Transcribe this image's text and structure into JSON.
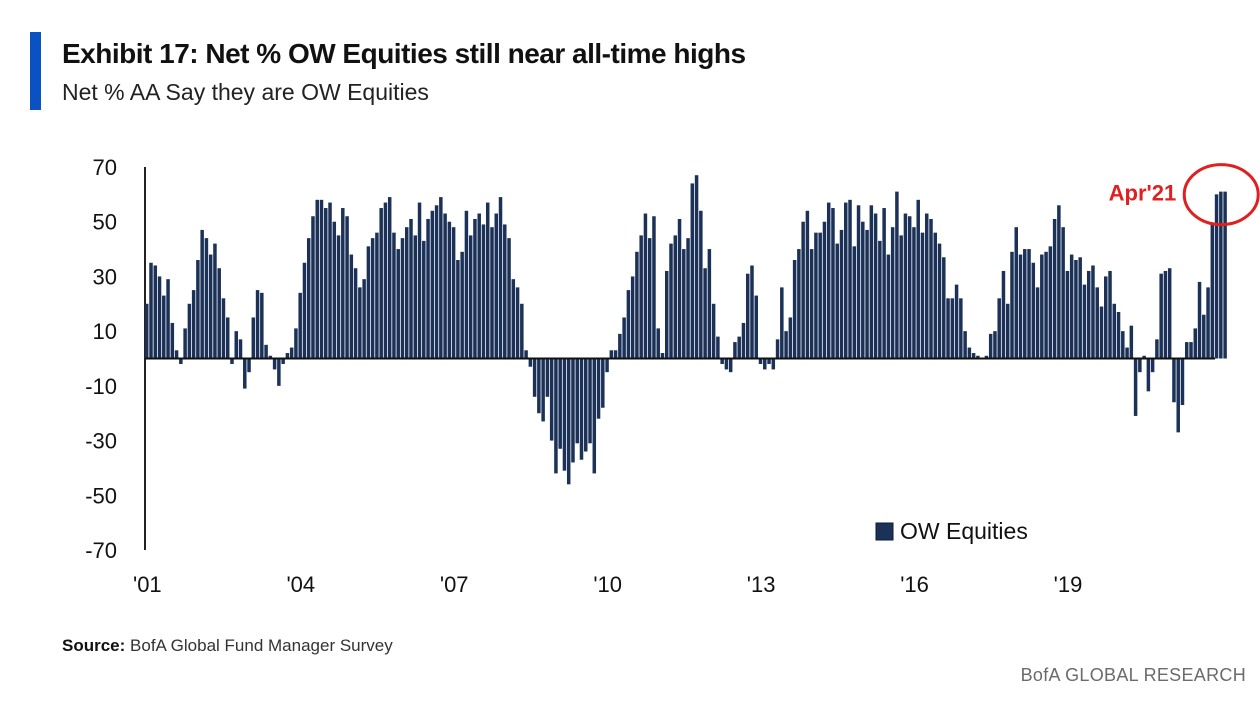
{
  "header": {
    "title": "Exhibit 17: Net % OW Equities still near all-time highs",
    "subtitle": "Net % AA Say they are OW Equities"
  },
  "footer": {
    "source_label": "Source:",
    "source_text": "BofA Global Fund Manager Survey",
    "brand": "BofA GLOBAL RESEARCH"
  },
  "colors": {
    "bar": "#1b3157",
    "accent": "#0a52c4",
    "annotation": "#e02020"
  },
  "annotation": {
    "label": "Apr'21"
  },
  "chart_data": {
    "type": "bar",
    "ylim": [
      -70,
      70
    ],
    "yticks": [
      70,
      50,
      30,
      10,
      -10,
      -30,
      -50,
      -70
    ],
    "xticks": [
      "'01",
      "'04",
      "'07",
      "'10",
      "'13",
      "'16",
      "'19"
    ],
    "xrange": [
      2001,
      2021.92
    ],
    "legend": {
      "label": "OW Equities",
      "position": "bottom-right"
    },
    "grid": false,
    "series": [
      {
        "name": "OW Equities",
        "start": "2001-01",
        "frequency": "monthly",
        "values": [
          20,
          35,
          34,
          30,
          23,
          29,
          13,
          3,
          -2,
          11,
          20,
          25,
          36,
          47,
          44,
          38,
          42,
          33,
          22,
          15,
          -2,
          10,
          7,
          -11,
          -5,
          15,
          25,
          24,
          5,
          1,
          -4,
          -10,
          -2,
          2,
          4,
          11,
          24,
          35,
          44,
          52,
          58,
          58,
          55,
          57,
          50,
          45,
          55,
          52,
          38,
          33,
          26,
          29,
          41,
          44,
          46,
          55,
          57,
          59,
          46,
          40,
          44,
          48,
          51,
          45,
          57,
          43,
          51,
          54,
          56,
          59,
          53,
          50,
          48,
          36,
          39,
          54,
          45,
          51,
          53,
          49,
          57,
          48,
          53,
          59,
          49,
          44,
          29,
          26,
          20,
          3,
          -3,
          -14,
          -20,
          -23,
          -14,
          -30,
          -42,
          -33,
          -41,
          -46,
          -38,
          -31,
          -37,
          -34,
          -31,
          -42,
          -22,
          -18,
          -5,
          3,
          3,
          9,
          15,
          25,
          30,
          39,
          45,
          53,
          44,
          52,
          11,
          2,
          32,
          42,
          45,
          51,
          40,
          44,
          64,
          67,
          54,
          33,
          40,
          20,
          8,
          -2,
          -4,
          -5,
          6,
          8,
          13,
          31,
          34,
          23,
          -2,
          -4,
          -2,
          -4,
          7,
          26,
          10,
          15,
          36,
          40,
          50,
          54,
          40,
          46,
          46,
          50,
          57,
          55,
          42,
          47,
          57,
          58,
          41,
          56,
          50,
          47,
          56,
          53,
          43,
          55,
          38,
          48,
          61,
          45,
          53,
          52,
          48,
          58,
          46,
          53,
          51,
          46,
          42,
          37,
          22,
          22,
          27,
          22,
          10,
          4,
          2,
          1,
          0,
          1,
          9,
          10,
          22,
          32,
          20,
          39,
          48,
          38,
          40,
          40,
          35,
          26,
          38,
          39,
          41,
          51,
          56,
          48,
          32,
          38,
          36,
          37,
          27,
          32,
          34,
          26,
          19,
          30,
          32,
          20,
          17,
          10,
          4,
          12,
          -21,
          -5,
          1,
          -12,
          -5,
          7,
          31,
          32,
          33,
          -16,
          -27,
          -17,
          6,
          6,
          11,
          28,
          16,
          26,
          49,
          60,
          61,
          61
        ]
      }
    ]
  }
}
